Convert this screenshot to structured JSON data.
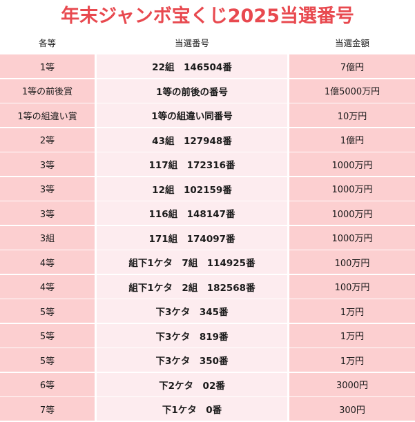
{
  "title": "年末ジャンボ宝くじ2025当選番号",
  "headers": {
    "grade": "各等",
    "number": "当選番号",
    "amount": "当選金額"
  },
  "rows": [
    {
      "grade": "1等",
      "number": "22組　146504番",
      "amount": "7億円"
    },
    {
      "grade": "1等の前後賞",
      "number": "1等の前後の番号",
      "amount": "1億5000万円"
    },
    {
      "grade": "1等の組違い賞",
      "number": "1等の組違い同番号",
      "amount": "10万円"
    },
    {
      "grade": "2等",
      "number": "43組　127948番",
      "amount": "1億円"
    },
    {
      "grade": "3等",
      "number": "117組　172316番",
      "amount": "1000万円"
    },
    {
      "grade": "3等",
      "number": "12組　102159番",
      "amount": "1000万円"
    },
    {
      "grade": "3等",
      "number": "116組　148147番",
      "amount": "1000万円"
    },
    {
      "grade": "3組",
      "number": "171組　174097番",
      "amount": "1000万円"
    },
    {
      "grade": "4等",
      "number": "組下1ケタ　7組　114925番",
      "amount": "100万円"
    },
    {
      "grade": "4等",
      "number": "組下1ケタ　2組　182568番",
      "amount": "100万円"
    },
    {
      "grade": "5等",
      "number": "下3ケタ　345番",
      "amount": "1万円"
    },
    {
      "grade": "5等",
      "number": "下3ケタ　819番",
      "amount": "1万円"
    },
    {
      "grade": "5等",
      "number": "下3ケタ　350番",
      "amount": "1万円"
    },
    {
      "grade": "6等",
      "number": "下2ケタ　02番",
      "amount": "3000円"
    },
    {
      "grade": "7等",
      "number": "下1ケタ　0番",
      "amount": "300円"
    }
  ]
}
